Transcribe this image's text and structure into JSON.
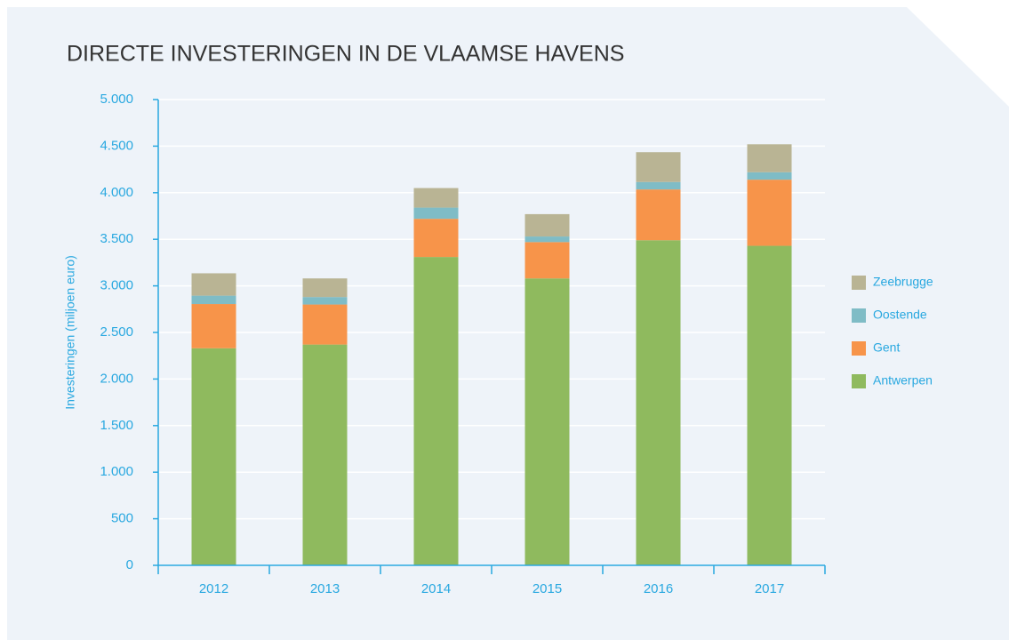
{
  "chart_data": {
    "type": "stacked_bar",
    "title": "DIRECTE INVESTERINGEN IN DE VLAAMSE HAVENS",
    "y_label": "Investeringen (miljoen euro)",
    "categories": [
      "2012",
      "2013",
      "2014",
      "2015",
      "2016",
      "2017"
    ],
    "series": [
      {
        "name": "Antwerpen",
        "color": "#8fba5e",
        "values": [
          2330,
          2370,
          3310,
          3080,
          3490,
          3430
        ]
      },
      {
        "name": "Gent",
        "color": "#f7944a",
        "values": [
          475,
          430,
          410,
          390,
          545,
          710
        ]
      },
      {
        "name": "Oostende",
        "color": "#7fbcc6",
        "values": [
          90,
          80,
          120,
          60,
          80,
          80
        ]
      },
      {
        "name": "Zeebrugge",
        "color": "#b9b494",
        "values": [
          240,
          200,
          210,
          240,
          320,
          300
        ]
      }
    ],
    "ylim": [
      0,
      5000
    ],
    "yticks": [
      0,
      500,
      {
        "value": 1000,
        "label": "1.000"
      },
      {
        "value": 1500,
        "label": "1.500"
      },
      {
        "value": 2000,
        "label": "2.000"
      },
      {
        "value": 2500,
        "label": "2.500"
      },
      {
        "value": 3000,
        "label": "3.000"
      },
      {
        "value": 3500,
        "label": "3.500"
      },
      {
        "value": 4000,
        "label": "4.000"
      },
      {
        "value": 4500,
        "label": "4.500"
      },
      {
        "value": 5000,
        "label": "5.000"
      }
    ],
    "grid": true
  }
}
